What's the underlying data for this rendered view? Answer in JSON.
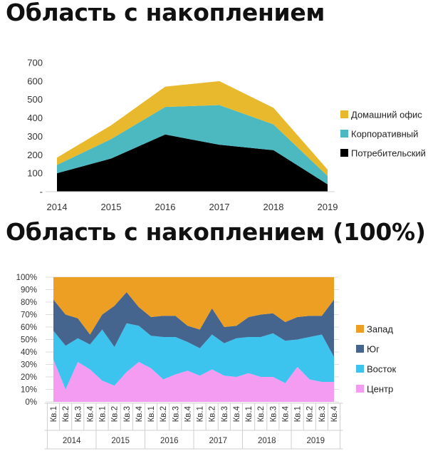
{
  "chart_data": [
    {
      "type": "area",
      "stacked": true,
      "title": "Область с накоплением",
      "categories": [
        "2014",
        "2015",
        "2016",
        "2017",
        "2018",
        "2019"
      ],
      "y_tick_labels": [
        "-",
        "100",
        "200",
        "300",
        "400",
        "500",
        "600",
        "700"
      ],
      "ylim": [
        0,
        700
      ],
      "grid": false,
      "legend_position": "right",
      "series": [
        {
          "name": "Потребительский",
          "color": "#000000",
          "values": [
            100,
            180,
            310,
            255,
            225,
            40
          ]
        },
        {
          "name": "Корпоративный",
          "color": "#4cb8c0",
          "values": [
            45,
            105,
            150,
            215,
            140,
            45
          ]
        },
        {
          "name": "Домашний офис",
          "color": "#e8b92c",
          "values": [
            40,
            75,
            110,
            130,
            90,
            35
          ]
        }
      ]
    },
    {
      "type": "area",
      "stacked": true,
      "percent": true,
      "title": "Область с накоплением (100%)",
      "categories": [
        "Кв.1",
        "Кв.2",
        "Кв.3",
        "Кв.4",
        "Кв.1",
        "Кв.2",
        "Кв.3",
        "Кв.4",
        "Кв.1",
        "Кв.2",
        "Кв.3",
        "Кв.4",
        "Кв.1",
        "Кв.2",
        "Кв.3",
        "Кв.4",
        "Кв.1",
        "Кв.2",
        "Кв.3",
        "Кв.4",
        "Кв.1",
        "Кв.2",
        "Кв.3",
        "Кв.4"
      ],
      "groups": [
        {
          "label": "2014",
          "count": 4
        },
        {
          "label": "2015",
          "count": 4
        },
        {
          "label": "2016",
          "count": 4
        },
        {
          "label": "2017",
          "count": 4
        },
        {
          "label": "2018",
          "count": 4
        },
        {
          "label": "2019",
          "count": 4
        }
      ],
      "y_tick_labels": [
        "0%",
        "10%",
        "20%",
        "30%",
        "40%",
        "50%",
        "60%",
        "70%",
        "80%",
        "90%",
        "100%"
      ],
      "ylim": [
        0,
        100
      ],
      "grid": true,
      "legend_position": "right",
      "series": [
        {
          "name": "Центр",
          "color": "#f49cf2",
          "values": [
            34,
            10,
            32,
            26,
            17,
            13,
            24,
            32,
            27,
            18,
            22,
            25,
            21,
            26,
            21,
            20,
            23,
            20,
            20,
            15,
            28,
            18,
            16,
            16
          ]
        },
        {
          "name": "Восток",
          "color": "#3cc3ee",
          "values": [
            23,
            35,
            19,
            20,
            41,
            31,
            39,
            29,
            26,
            34,
            30,
            23,
            22,
            28,
            26,
            31,
            29,
            32,
            35,
            34,
            22,
            34,
            38,
            20
          ]
        },
        {
          "name": "Юг",
          "color": "#45648e",
          "values": [
            25,
            25,
            16,
            8,
            12,
            33,
            25,
            15,
            15,
            17,
            17,
            13,
            15,
            21,
            13,
            10,
            16,
            18,
            16,
            15,
            18,
            17,
            15,
            46
          ]
        },
        {
          "name": "Запад",
          "color": "#ed9f23",
          "values": [
            18,
            30,
            33,
            46,
            30,
            23,
            12,
            24,
            32,
            31,
            31,
            39,
            42,
            25,
            40,
            39,
            32,
            30,
            29,
            36,
            32,
            31,
            31,
            18
          ]
        }
      ]
    }
  ]
}
